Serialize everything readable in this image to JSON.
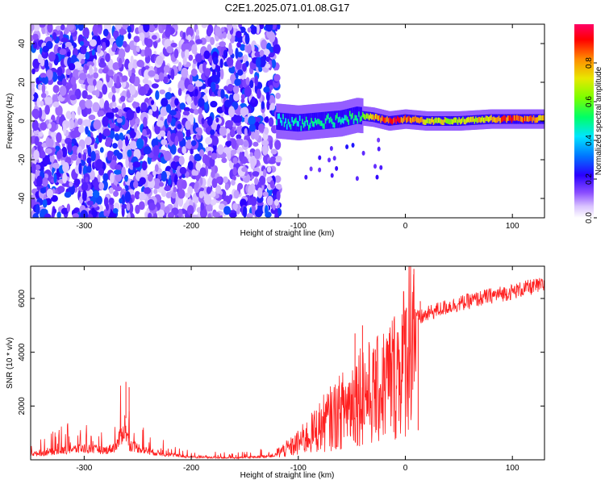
{
  "figure": {
    "title": "C2E1.2025.071.01.08.G17"
  },
  "chart_data": [
    {
      "type": "heatmap",
      "xlabel": "Height of straight line (km)",
      "ylabel": "Frequency (Hz)",
      "xlim": [
        -350,
        130
      ],
      "ylim": [
        -50,
        50
      ],
      "x_ticks": [
        -300,
        -200,
        -100,
        0,
        100
      ],
      "y_ticks": [
        -40,
        -20,
        0,
        20,
        40
      ],
      "colorbar": {
        "label": "Normalized spectral amplitude",
        "range": [
          0,
          1
        ],
        "ticks": [
          "0.0",
          "0.2",
          "0.4",
          "0.6",
          "0.8"
        ],
        "colors": [
          "#ffffff",
          "#c9a6ff",
          "#6f2bff",
          "#1f00ff",
          "#0080ff",
          "#00e5ff",
          "#00ff66",
          "#66ff00",
          "#e8e800",
          "#ff8c00",
          "#ff0000",
          "#ff0077"
        ]
      },
      "signal_track": [
        {
          "x": -120,
          "freq": 0,
          "amp": 0.45
        },
        {
          "x": -100,
          "freq": -1,
          "amp": 0.5
        },
        {
          "x": -80,
          "freq": 0,
          "amp": 0.5
        },
        {
          "x": -60,
          "freq": 1,
          "amp": 0.5
        },
        {
          "x": -45,
          "freq": 3,
          "amp": 0.55
        },
        {
          "x": -30,
          "freq": 2,
          "amp": 0.8
        },
        {
          "x": -15,
          "freq": 0,
          "amp": 0.95
        },
        {
          "x": 0,
          "freq": 1,
          "amp": 0.9
        },
        {
          "x": 20,
          "freq": 0,
          "amp": 0.75
        },
        {
          "x": 50,
          "freq": 0,
          "amp": 0.7
        },
        {
          "x": 80,
          "freq": 1,
          "amp": 0.8
        },
        {
          "x": 100,
          "freq": 1,
          "amp": 0.95
        },
        {
          "x": 130,
          "freq": 1,
          "amp": 0.8
        }
      ],
      "noise_region": {
        "x_from": -350,
        "x_to": -118,
        "freq_from": -50,
        "freq_to": 50,
        "amp_max": 0.3
      }
    },
    {
      "type": "line",
      "xlabel": "Height of straight line (km)",
      "ylabel": "SNR (10 * v/v)",
      "xlim": [
        -350,
        130
      ],
      "ylim": [
        0,
        7200
      ],
      "x_ticks": [
        -300,
        -200,
        -100,
        0,
        100
      ],
      "y_ticks": [
        2000,
        4000,
        6000
      ],
      "series_color": "#ff2020",
      "points": [
        {
          "x": -350,
          "y": 300
        },
        {
          "x": -340,
          "y": 350
        },
        {
          "x": -320,
          "y": 500
        },
        {
          "x": -300,
          "y": 600
        },
        {
          "x": -280,
          "y": 500
        },
        {
          "x": -270,
          "y": 700
        },
        {
          "x": -262,
          "y": 1800
        },
        {
          "x": -258,
          "y": 800
        },
        {
          "x": -240,
          "y": 450
        },
        {
          "x": -220,
          "y": 250
        },
        {
          "x": -200,
          "y": 150
        },
        {
          "x": -180,
          "y": 120
        },
        {
          "x": -160,
          "y": 100
        },
        {
          "x": -140,
          "y": 150
        },
        {
          "x": -120,
          "y": 250
        },
        {
          "x": -105,
          "y": 500
        },
        {
          "x": -90,
          "y": 900
        },
        {
          "x": -75,
          "y": 1400
        },
        {
          "x": -60,
          "y": 1800
        },
        {
          "x": -50,
          "y": 2200
        },
        {
          "x": -40,
          "y": 2600
        },
        {
          "x": -30,
          "y": 2400
        },
        {
          "x": -20,
          "y": 2800
        },
        {
          "x": -10,
          "y": 3200
        },
        {
          "x": 0,
          "y": 3800
        },
        {
          "x": 5,
          "y": 5200
        },
        {
          "x": 15,
          "y": 5300
        },
        {
          "x": 25,
          "y": 5500
        },
        {
          "x": 40,
          "y": 5700
        },
        {
          "x": 60,
          "y": 5900
        },
        {
          "x": 80,
          "y": 6100
        },
        {
          "x": 100,
          "y": 6250
        },
        {
          "x": 115,
          "y": 6400
        },
        {
          "x": 130,
          "y": 6500
        }
      ],
      "spikes": [
        {
          "x": -261,
          "y": 2900
        },
        {
          "x": -258,
          "y": 2700
        },
        {
          "x": -47,
          "y": 4700
        },
        {
          "x": -40,
          "y": 5000
        },
        {
          "x": -28,
          "y": 4100
        },
        {
          "x": 8,
          "y": 7100
        },
        {
          "x": 14,
          "y": 5900
        },
        {
          "x": 12,
          "y": 1100
        }
      ]
    }
  ]
}
